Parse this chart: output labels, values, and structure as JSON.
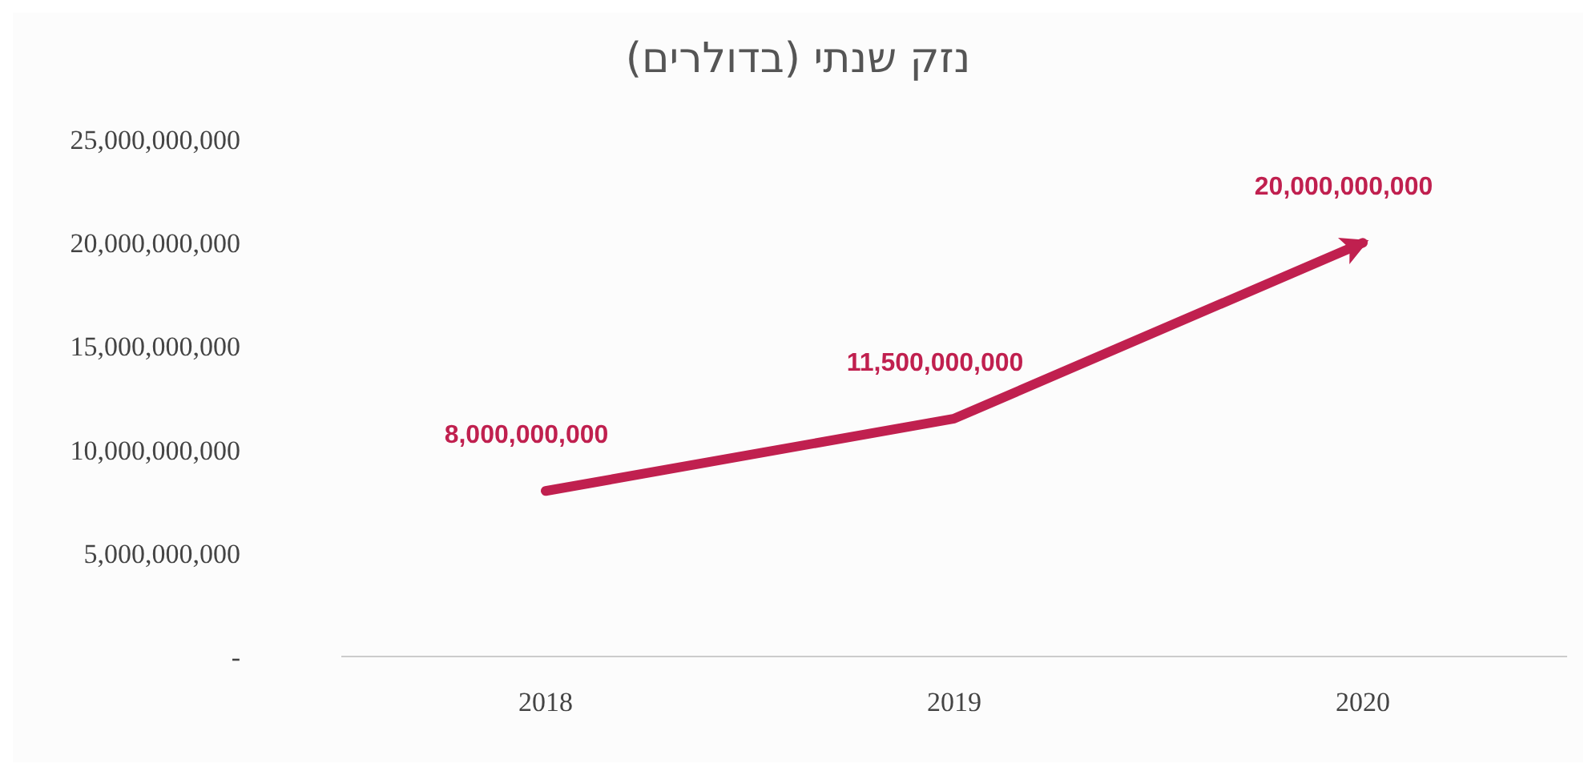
{
  "chart_data": {
    "type": "line",
    "title": "נזק שנתי (בדולרים)",
    "categories": [
      "2018",
      "2019",
      "2020"
    ],
    "series": [
      {
        "color": "#c0204f",
        "values": [
          8000000000,
          11500000000,
          20000000000
        ],
        "value_labels": [
          "8,000,000,000",
          "11,500,000,000",
          "20,000,000,000"
        ]
      }
    ],
    "ylim": [
      0,
      25000000000
    ],
    "yticks": [
      {
        "value": 0,
        "label": "-"
      },
      {
        "value": 5000000000,
        "label": "5,000,000,000"
      },
      {
        "value": 10000000000,
        "label": "10,000,000,000"
      },
      {
        "value": 15000000000,
        "label": "15,000,000,000"
      },
      {
        "value": 20000000000,
        "label": "20,000,000,000"
      },
      {
        "value": 25000000000,
        "label": "25,000,000,000"
      }
    ],
    "grid": false,
    "legend": false,
    "marker": "none",
    "line_style": "solid"
  }
}
